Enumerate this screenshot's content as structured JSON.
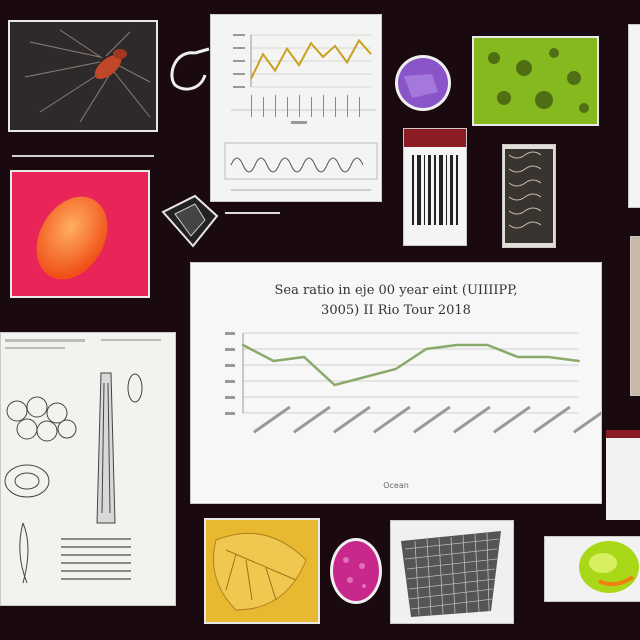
{
  "board": {
    "background": "#1a0a10",
    "main_chart_title_line1": "Sea ratio in eje 00 year eint (UIIIIPP,",
    "main_chart_title_line2": "3005) II Rio Tour 2018",
    "main_chart_xlabel": "Ocean"
  },
  "chart_data": [
    {
      "type": "line",
      "title": "Sea ratio in eje 00 year eint (UIIIIPP, 3005) II Rio Tour 2018",
      "xlabel": "Ocean",
      "ylabel": "",
      "x": [
        1,
        2,
        3,
        4,
        5,
        6,
        7,
        8,
        9,
        10,
        11,
        12
      ],
      "values": [
        3.2,
        2.8,
        2.9,
        2.2,
        2.4,
        2.6,
        3.1,
        3.2,
        3.2,
        2.9,
        2.9,
        2.8
      ],
      "ylim": [
        1.5,
        3.5
      ],
      "series_color": "#8aaa6c",
      "grid": true
    },
    {
      "type": "line",
      "title": "",
      "values": [
        2.1,
        3.0,
        2.4,
        3.2,
        2.6,
        3.4,
        2.9,
        3.3,
        2.7,
        3.5,
        3.0
      ],
      "series_color": "#c9a020",
      "grid": true
    }
  ],
  "icons": {
    "main_chart": "line-chart-icon",
    "top_chart": "line-chart-icon",
    "wave_strip": "wave-icon",
    "barcode_doc": "document-icon",
    "wood_doc": "document-icon",
    "sketch_page": "sketch-icon",
    "hook": "hook-icon",
    "shell": "shell-icon",
    "purple_orb": "orb-icon",
    "magenta_egg": "egg-icon",
    "lime_fruit": "fruit-icon",
    "moss": "texture-icon",
    "leaf": "leaf-icon",
    "mesh": "mesh-icon",
    "spider": "spider-icon",
    "orange_blob": "blob-icon"
  },
  "colors": {
    "spider_bg": "#2e2a2c",
    "pink_bg": "#e82458",
    "orange_blob": "#f07020",
    "moss": "#86b820",
    "orb": "#8a55c8",
    "egg": "#c8288c",
    "lime": "#a8d818",
    "leaf_bg": "#e8b830",
    "accent_red": "#8c1c24"
  }
}
